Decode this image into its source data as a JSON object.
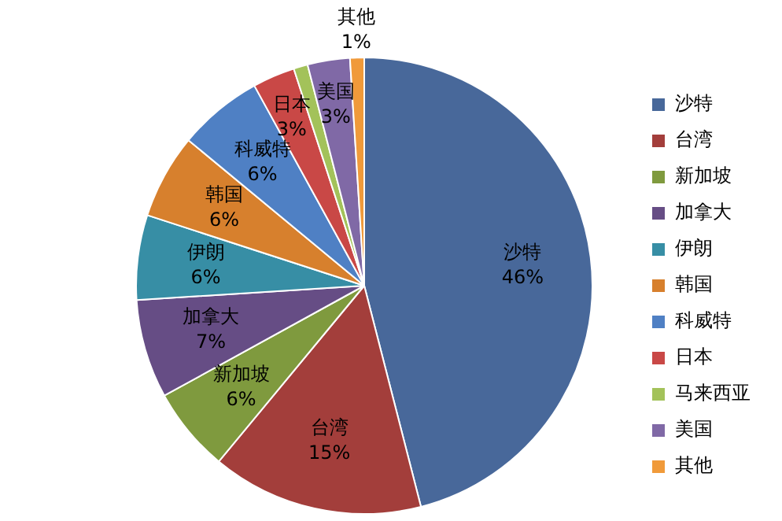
{
  "chart_data": {
    "type": "pie",
    "categories": [
      "沙特",
      "台湾",
      "新加坡",
      "加拿大",
      "伊朗",
      "韩国",
      "科威特",
      "日本",
      "马来西亚",
      "美国",
      "其他"
    ],
    "values": [
      46,
      15,
      6,
      7,
      6,
      6,
      6,
      3,
      1,
      3,
      1
    ],
    "value_labels": [
      "46%",
      "15%",
      "6%",
      "7%",
      "6%",
      "6%",
      "6%",
      "3%",
      null,
      "3%",
      "1%"
    ],
    "colors": [
      "#48689a",
      "#a33e3b",
      "#7f9a3e",
      "#664d85",
      "#378ea5",
      "#d7802d",
      "#4f80c4",
      "#c94846",
      "#a3c25a",
      "#8069a6",
      "#f09a3a"
    ],
    "legend": "right"
  }
}
